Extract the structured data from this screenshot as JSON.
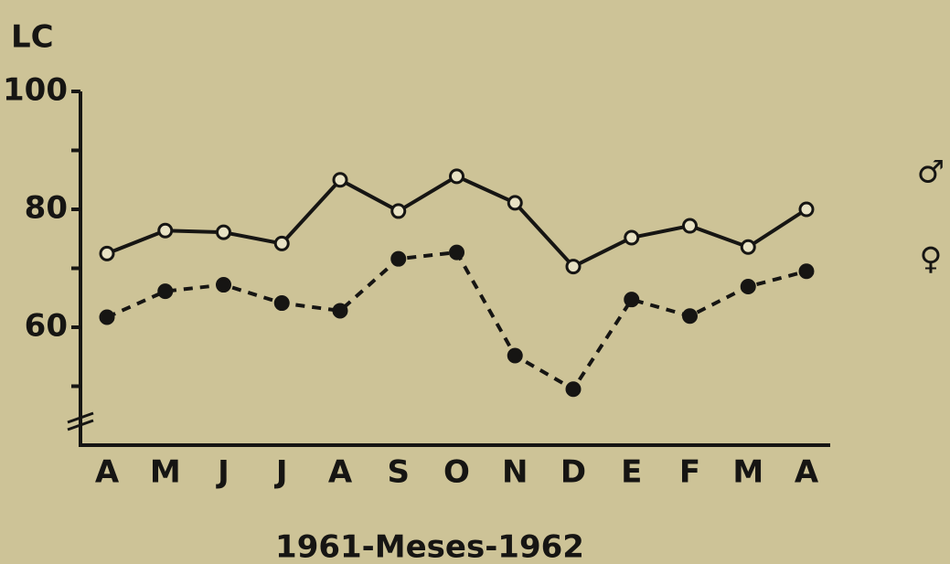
{
  "chart_data": {
    "type": "line",
    "ylabel": "LC",
    "xlabel": "1961-Meses-1962",
    "categories": [
      "A",
      "M",
      "J",
      "J",
      "A",
      "S",
      "O",
      "N",
      "D",
      "E",
      "F",
      "M",
      "A"
    ],
    "series": [
      {
        "name": "♂",
        "color": "#161513",
        "marker": "open",
        "dash": "solid",
        "values": [
          72.5,
          76.4,
          76.1,
          74.2,
          85,
          79.7,
          85.6,
          81.1,
          70.3,
          75.2,
          77.2,
          73.6,
          80
        ]
      },
      {
        "name": "♀",
        "color": "#161513",
        "marker": "filled",
        "dash": "dashed",
        "values": [
          61.7,
          66.1,
          67.2,
          64.1,
          62.8,
          71.6,
          72.7,
          55.2,
          49.5,
          64.7,
          61.9,
          66.9,
          69.5
        ]
      }
    ],
    "ylim": [
      40,
      100
    ],
    "yticks": [
      60,
      80,
      100
    ],
    "minor_yticks": [
      50,
      70,
      90
    ],
    "grid": false
  }
}
